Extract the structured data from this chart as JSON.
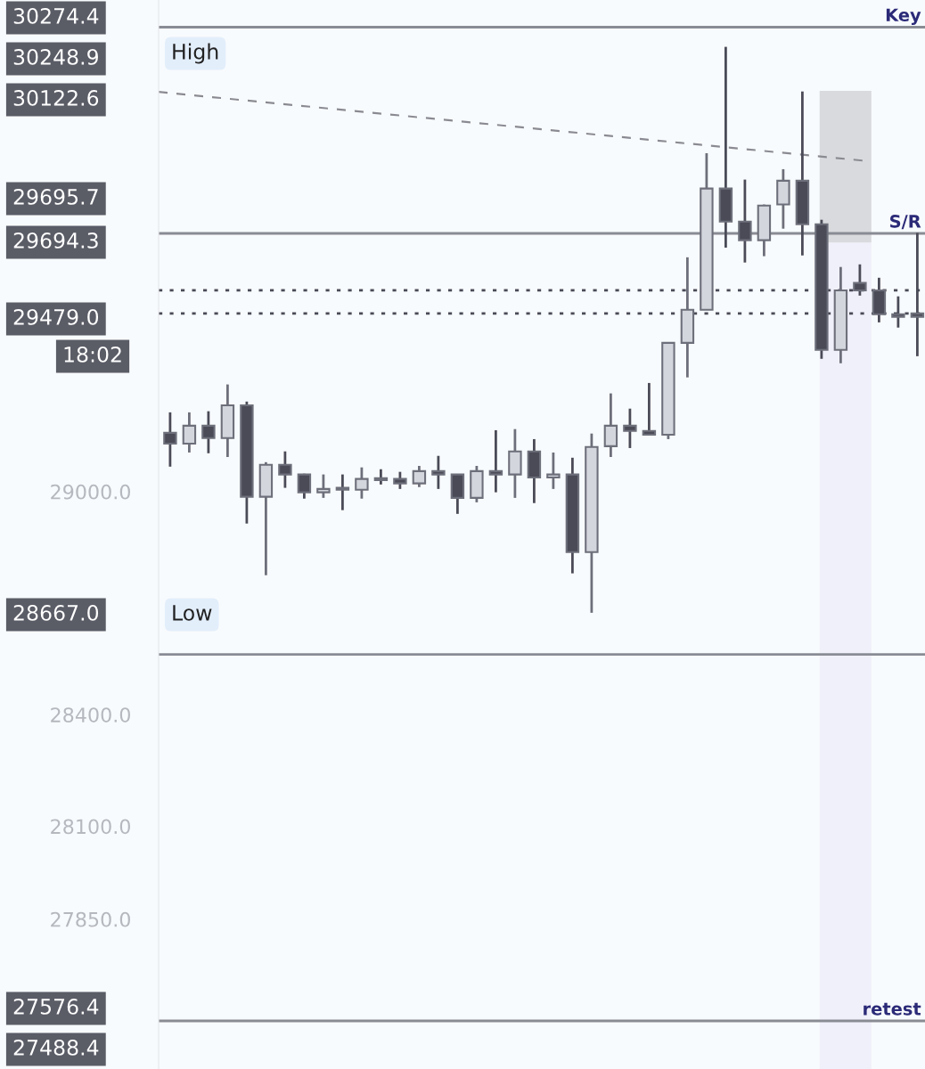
{
  "chart_data": {
    "type": "candlestick",
    "categories": [
      null,
      null,
      null,
      null,
      null,
      null,
      null,
      null,
      null,
      null,
      null,
      null,
      null,
      null,
      null,
      null,
      null,
      null,
      null,
      null,
      null,
      null,
      null,
      null,
      null,
      null,
      null,
      null,
      null,
      null,
      null,
      null,
      null,
      null,
      null,
      null,
      null,
      null,
      null,
      null
    ],
    "ohlc": [
      [
        29158,
        29213,
        29067,
        29129
      ],
      [
        29129,
        29213,
        29105,
        29177
      ],
      [
        29177,
        29216,
        29103,
        29144
      ],
      [
        29144,
        29288,
        29093,
        29232
      ],
      [
        29232,
        29242,
        28914,
        28986
      ],
      [
        28986,
        29079,
        28775,
        29072
      ],
      [
        29072,
        29108,
        29010,
        29046
      ],
      [
        29046,
        29048,
        28981,
        28998
      ],
      [
        28998,
        29046,
        28983,
        29007
      ],
      [
        29010,
        29046,
        28950,
        29005
      ],
      [
        29005,
        29065,
        28981,
        29034
      ],
      [
        29036,
        29060,
        29019,
        29031
      ],
      [
        29034,
        29053,
        29007,
        29022
      ],
      [
        29022,
        29069,
        29012,
        29055
      ],
      [
        29055,
        29096,
        29007,
        29046
      ],
      [
        29046,
        29046,
        28940,
        28983
      ],
      [
        28983,
        29069,
        28971,
        29055
      ],
      [
        29055,
        29165,
        28998,
        29046
      ],
      [
        29046,
        29168,
        28983,
        29108
      ],
      [
        29108,
        29141,
        28969,
        29038
      ],
      [
        29038,
        29105,
        29007,
        29046
      ],
      [
        29046,
        29091,
        28780,
        28837
      ],
      [
        28837,
        29156,
        28674,
        29120
      ],
      [
        29122,
        29264,
        29093,
        29177
      ],
      [
        29177,
        29223,
        29117,
        29163
      ],
      [
        29163,
        29292,
        29153,
        29153
      ],
      [
        29153,
        29400,
        29141,
        29400
      ],
      [
        29400,
        29630,
        29307,
        29489
      ],
      [
        29489,
        29910,
        29489,
        29815
      ],
      [
        29815,
        30196,
        29656,
        29726
      ],
      [
        29726,
        29839,
        29616,
        29676
      ],
      [
        29676,
        29772,
        29633,
        29769
      ],
      [
        29772,
        29867,
        29707,
        29836
      ],
      [
        29836,
        30076,
        29635,
        29719
      ],
      [
        29719,
        29731,
        29357,
        29381
      ],
      [
        29381,
        29604,
        29345,
        29541
      ],
      [
        29561,
        29611,
        29527,
        29541
      ],
      [
        29541,
        29575,
        29455,
        29477
      ],
      [
        29477,
        29525,
        29441,
        29470
      ],
      [
        29470,
        29695.7,
        29364,
        29479
      ]
    ],
    "colors": [
      "#4a4b57",
      "#d4d6de",
      "#4a4b57",
      "#d4d6de",
      "#4a4b57",
      "#d4d6de",
      "#4a4b57",
      "#4a4b57",
      "#d4d6de",
      "#4a4b57",
      "#d4d6de",
      "#4a4b57",
      "#4a4b57",
      "#d4d6de",
      "#4a4b57",
      "#4a4b57",
      "#d4d6de",
      "#4a4b57",
      "#d4d6de",
      "#4a4b57",
      "#d4d6de",
      "#4a4b57",
      "#d4d6de",
      "#d4d6de",
      "#4a4b57",
      "#4a4b57",
      "#d4d6de",
      "#d4d6de",
      "#d4d6de",
      "#4a4b57",
      "#4a4b57",
      "#d4d6de",
      "#d4d6de",
      "#4a4b57",
      "#4a4b57",
      "#d4d6de",
      "#4a4b57",
      "#4a4b57",
      "#4a4b57",
      "#4a4b57"
    ],
    "ylim": [
      27447,
      30322
    ],
    "yticks": [
      {
        "value": 29000,
        "label": "29000.0"
      },
      {
        "value": 28400,
        "label": "28400.0"
      },
      {
        "value": 28100,
        "label": "28100.0"
      },
      {
        "value": 27850,
        "label": "27850.0"
      }
    ],
    "ref_lines": [
      {
        "axis": "y",
        "value": 30248.9,
        "label": "Key",
        "color": "#8a8c94",
        "line_style": "solid"
      },
      {
        "axis": "y",
        "value": 29694.3,
        "label": "S/R",
        "color": "#8a8c94",
        "line_style": "solid"
      },
      {
        "axis": "y",
        "value": 29541,
        "color": "#4a4b57",
        "line_style": "dotted"
      },
      {
        "axis": "y",
        "value": 29479,
        "color": "#4a4b57",
        "line_style": "dotted"
      },
      {
        "axis": "y",
        "value": 28562,
        "color": "#8a8c94",
        "line_style": "solid"
      },
      {
        "axis": "y",
        "value": 27576.4,
        "label": "retest",
        "color": "#8a8c94",
        "line_style": "solid"
      }
    ],
    "annotations": [
      "30274.4",
      "30248.9",
      "High",
      "30122.6",
      "29695.7",
      "29694.3",
      "29479.0",
      "18:02",
      "28667.0",
      "Low",
      "27576.4",
      "27488.4"
    ],
    "grid": false
  }
}
